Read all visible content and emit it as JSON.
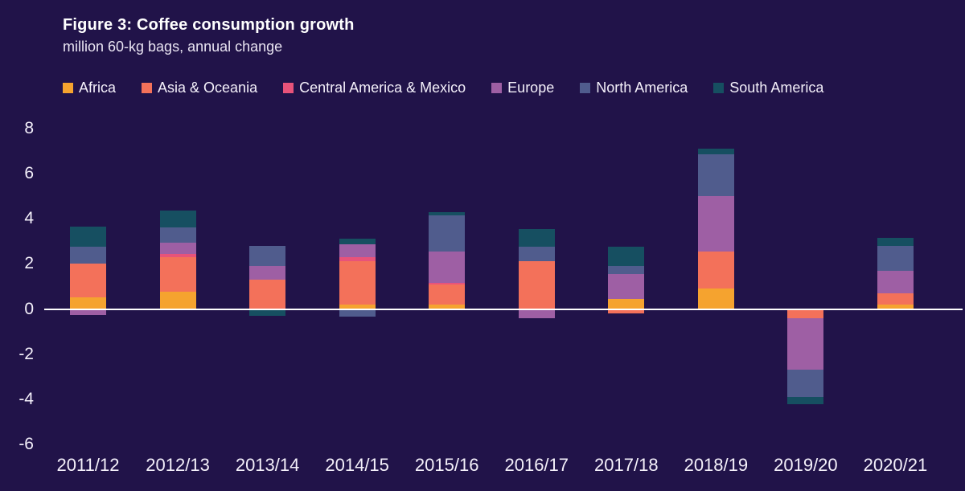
{
  "chart_data": {
    "type": "bar",
    "variant": "stacked",
    "title": "Figure 3: Coffee consumption growth",
    "subtitle": "million 60-kg bags, annual change",
    "categories": [
      "2011/12",
      "2012/13",
      "2013/14",
      "2014/15",
      "2015/16",
      "2016/17",
      "2017/18",
      "2018/19",
      "2019/20",
      "2020/21"
    ],
    "series": [
      {
        "name": "Africa",
        "color": "#F5A32F",
        "values": [
          0.5,
          0.75,
          0.0,
          0.2,
          0.2,
          0.0,
          0.45,
          0.9,
          0.0,
          0.2
        ]
      },
      {
        "name": "Asia & Oceania",
        "color": "#F3715A",
        "values": [
          1.5,
          1.55,
          1.3,
          1.9,
          0.9,
          2.1,
          -0.2,
          1.65,
          -0.4,
          0.5
        ]
      },
      {
        "name": "Central America & Mexico",
        "color": "#E8537A",
        "values": [
          0.0,
          0.15,
          0.0,
          0.2,
          0.05,
          0.0,
          0.0,
          0.0,
          0.0,
          0.0
        ]
      },
      {
        "name": "Europe",
        "color": "#9E5FA4",
        "values": [
          -0.25,
          0.5,
          0.6,
          0.55,
          1.4,
          -0.4,
          1.1,
          2.45,
          -2.3,
          1.0
        ]
      },
      {
        "name": "North America",
        "color": "#505C8D",
        "values": [
          0.75,
          0.65,
          0.9,
          -0.35,
          1.6,
          0.65,
          0.35,
          1.85,
          -1.2,
          1.1
        ]
      },
      {
        "name": "South America",
        "color": "#164F61",
        "values": [
          0.9,
          0.75,
          -0.3,
          0.25,
          0.15,
          0.8,
          0.85,
          0.25,
          -0.3,
          0.35
        ]
      }
    ],
    "y_ticks": [
      8,
      6,
      4,
      2,
      0,
      -2,
      -4,
      -6
    ],
    "ylim": [
      -6.5,
      8.5
    ],
    "grid": "off",
    "legend_position": "top",
    "background_color": "#211349",
    "zero_line_color": "#FFFFFF",
    "text_color": "#F4F0FA"
  }
}
